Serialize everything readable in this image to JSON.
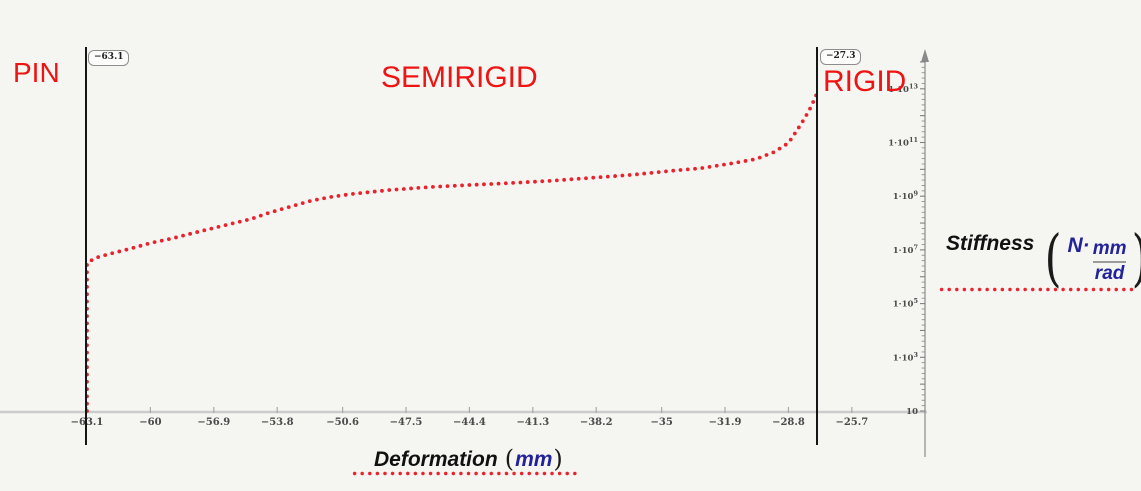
{
  "regions": {
    "pin": "PIN",
    "semirigid": "SEMIRIGID",
    "rigid": "RIGID"
  },
  "boundaries": {
    "pin_value": "−63.1",
    "rigid_value": "−27.3"
  },
  "x_axis": {
    "title": "Deformation",
    "unit": "mm",
    "ticks": [
      {
        "label": "−63.1",
        "value": -63.1
      },
      {
        "label": "−60",
        "value": -60
      },
      {
        "label": "−56.9",
        "value": -56.9
      },
      {
        "label": "−53.8",
        "value": -53.8
      },
      {
        "label": "−50.6",
        "value": -50.6
      },
      {
        "label": "−47.5",
        "value": -47.5
      },
      {
        "label": "−44.4",
        "value": -44.4
      },
      {
        "label": "−41.3",
        "value": -41.3
      },
      {
        "label": "−38.2",
        "value": -38.2
      },
      {
        "label": "−35",
        "value": -35
      },
      {
        "label": "−31.9",
        "value": -31.9
      },
      {
        "label": "−28.8",
        "value": -28.8
      },
      {
        "label": "−25.7",
        "value": -25.7
      }
    ]
  },
  "y_axis": {
    "title": "Stiffness",
    "unit_prefix": "N·",
    "unit_numerator": "mm",
    "unit_denominator": "rad",
    "ticks": [
      {
        "label": "1·10",
        "exp": "13",
        "value": 10000000000000.0
      },
      {
        "label": "1·10",
        "exp": "11",
        "value": 100000000000.0
      },
      {
        "label": "1·10",
        "exp": "9",
        "value": 1000000000.0
      },
      {
        "label": "1·10",
        "exp": "7",
        "value": 10000000.0
      },
      {
        "label": "1·10",
        "exp": "5",
        "value": 100000.0
      },
      {
        "label": "1·10",
        "exp": "3",
        "value": 1000.0
      },
      {
        "label": "10",
        "exp": "",
        "value": 10
      }
    ]
  },
  "colors": {
    "red_label": "#ee1414",
    "dot_red": "#e8232e",
    "navy": "#22229a",
    "y_axis_gray": "#9a9a9a",
    "x_axis_gray": "#cccccc",
    "boundary_black": "#151515"
  },
  "chart_data": {
    "type": "scatter",
    "style": "red dotted curve",
    "title": "",
    "xlabel": "Deformation (mm)",
    "ylabel": "Stiffness (N·mm/rad)",
    "x_range": [
      -64.5,
      -22
    ],
    "y_scale": "log",
    "y_range": [
      10,
      10000000000000.0
    ],
    "region_boundaries_mm": [
      -63.1,
      -27.3
    ],
    "points": [
      [
        -63.1,
        10
      ],
      [
        -63.1,
        1000.0
      ],
      [
        -63.1,
        100000.0
      ],
      [
        -63.1,
        3200000.0
      ],
      [
        -62.7,
        5000000.0
      ],
      [
        -62.0,
        7100000.0
      ],
      [
        -61.0,
        11000000.0
      ],
      [
        -60.0,
        18000000.0
      ],
      [
        -59.0,
        26000000.0
      ],
      [
        -58.1,
        39000000.0
      ],
      [
        -57.1,
        60000000.0
      ],
      [
        -56.1,
        92000000.0
      ],
      [
        -55.1,
        140000000.0
      ],
      [
        -54.2,
        240000000.0
      ],
      [
        -53.2,
        400000000.0
      ],
      [
        -52.2,
        660000000.0
      ],
      [
        -51.2,
        930000000.0
      ],
      [
        -50.2,
        1200000000.0
      ],
      [
        -48.3,
        1700000000.0
      ],
      [
        -46.3,
        2200000000.0
      ],
      [
        -44.4,
        2600000000.0
      ],
      [
        -42.4,
        3100000000.0
      ],
      [
        -40.5,
        3700000000.0
      ],
      [
        -38.5,
        4800000000.0
      ],
      [
        -36.5,
        6200000000.0
      ],
      [
        -34.6,
        8700000000.0
      ],
      [
        -33.1,
        11000000000.0
      ],
      [
        -31.7,
        16000000000.0
      ],
      [
        -30.4,
        24000000000.0
      ],
      [
        -29.5,
        44000000000.0
      ],
      [
        -28.8,
        96000000000.0
      ],
      [
        -28.4,
        270000000000.0
      ],
      [
        -28.0,
        810000000000.0
      ],
      [
        -27.7,
        2100000000000.0
      ],
      [
        -27.5,
        4600000000000.0
      ],
      [
        -27.4,
        6900000000000.0
      ]
    ]
  }
}
